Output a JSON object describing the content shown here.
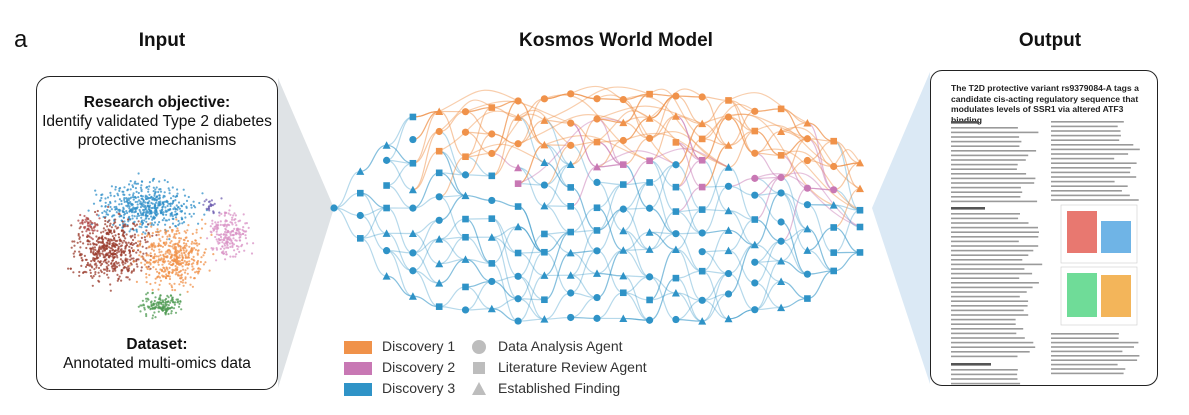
{
  "panel_letter": "a",
  "titles": {
    "input": "Input",
    "model": "Kosmos World Model",
    "output": "Output"
  },
  "input": {
    "objective_heading": "Research objective:",
    "objective_text": "Identify validated Type 2 diabetes protective mechanisms",
    "dataset_heading": "Dataset:",
    "dataset_text": "Annotated multi-omics data"
  },
  "output": {
    "paper_title": "The T2D protective variant rs9379084-A tags a candidate cis-acting regulatory sequence that modulates levels of SSR1 via altered ATF3 binding"
  },
  "legend": {
    "discoveries": [
      {
        "label": "Discovery 1",
        "color": "#f0924a"
      },
      {
        "label": "Discovery 2",
        "color": "#c878b4"
      },
      {
        "label": "Discovery 3",
        "color": "#2f93c7"
      }
    ],
    "agents": [
      {
        "label": "Data Analysis Agent",
        "shape": "circle"
      },
      {
        "label": "Literature Review Agent",
        "shape": "square"
      },
      {
        "label": "Established Finding",
        "shape": "triangle"
      }
    ]
  },
  "colors": {
    "discovery1": "#f0924a",
    "discovery2": "#c878b4",
    "discovery3": "#2f93c7",
    "neutral_shape": "#bdbdbd",
    "cone": "#dfe3e6",
    "cone_right": "#dbe9f5"
  }
}
